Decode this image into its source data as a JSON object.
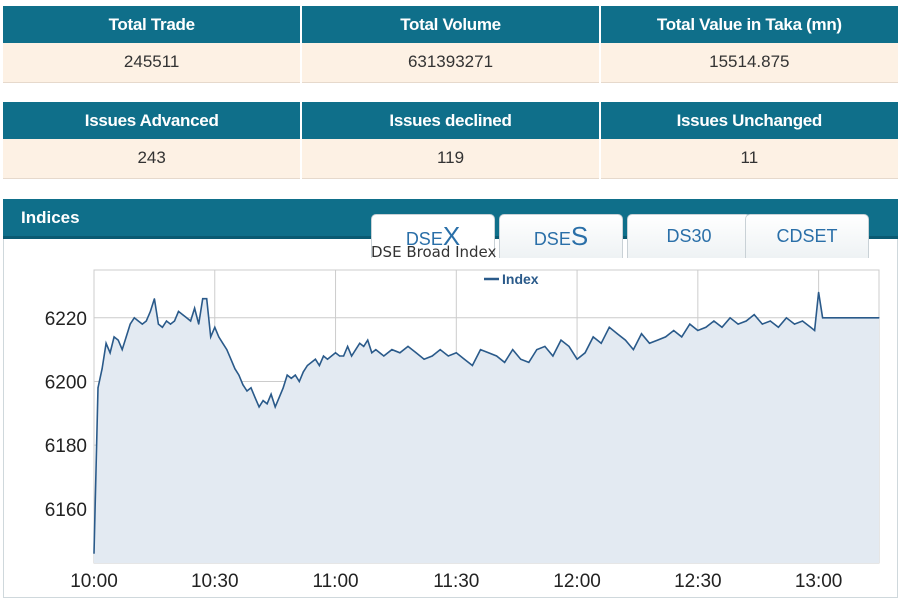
{
  "market_summary": {
    "headers": [
      "Total Trade",
      "Total Volume",
      "Total Value in Taka (mn)"
    ],
    "values": [
      "245511",
      "631393271",
      "15514.875"
    ]
  },
  "issues_summary": {
    "headers": [
      "Issues Advanced",
      "Issues declined",
      "Issues Unchanged"
    ],
    "values": [
      "243",
      "119",
      "11"
    ]
  },
  "indices": {
    "title": "Indices",
    "tabs": [
      {
        "prefix": "DSE",
        "suffix": "X",
        "active": true
      },
      {
        "prefix": "DSE",
        "suffix": "S",
        "active": false
      },
      {
        "prefix": "DS30",
        "suffix": "",
        "active": false
      },
      {
        "prefix": "CDSET",
        "suffix": "",
        "active": false
      }
    ]
  },
  "colors": {
    "header_bg": "#0f6f8a",
    "value_bg": "#fdf1e4",
    "line": "#2a5a8a",
    "fill": "#e3eaf2"
  },
  "chart_data": {
    "type": "area",
    "title": "DSE Broad Index",
    "legend": [
      {
        "name": "Index",
        "placement": "top-center"
      }
    ],
    "xlabel": "",
    "ylabel": "",
    "x_ticks": [
      "10:00",
      "10:30",
      "11:00",
      "11:30",
      "12:00",
      "12:30",
      "13:00"
    ],
    "y_ticks": [
      6160,
      6180,
      6200,
      6220
    ],
    "xlim": [
      "10:00",
      "13:15"
    ],
    "ylim": [
      6143,
      6235
    ],
    "grid": true,
    "series": [
      {
        "name": "Index",
        "x": [
          "10:00",
          "10:01",
          "10:02",
          "10:03",
          "10:04",
          "10:05",
          "10:06",
          "10:07",
          "10:08",
          "10:09",
          "10:10",
          "10:11",
          "10:12",
          "10:13",
          "10:14",
          "10:15",
          "10:16",
          "10:17",
          "10:18",
          "10:19",
          "10:20",
          "10:21",
          "10:22",
          "10:23",
          "10:24",
          "10:25",
          "10:26",
          "10:27",
          "10:28",
          "10:29",
          "10:30",
          "10:31",
          "10:32",
          "10:33",
          "10:34",
          "10:35",
          "10:36",
          "10:37",
          "10:38",
          "10:39",
          "10:40",
          "10:41",
          "10:42",
          "10:43",
          "10:44",
          "10:45",
          "10:46",
          "10:47",
          "10:48",
          "10:49",
          "10:50",
          "10:51",
          "10:52",
          "10:53",
          "10:54",
          "10:55",
          "10:56",
          "10:57",
          "10:58",
          "10:59",
          "11:00",
          "11:01",
          "11:02",
          "11:03",
          "11:04",
          "11:05",
          "11:06",
          "11:07",
          "11:08",
          "11:09",
          "11:10",
          "11:12",
          "11:14",
          "11:16",
          "11:18",
          "11:20",
          "11:22",
          "11:24",
          "11:26",
          "11:28",
          "11:30",
          "11:32",
          "11:34",
          "11:36",
          "11:38",
          "11:40",
          "11:42",
          "11:44",
          "11:46",
          "11:48",
          "11:50",
          "11:52",
          "11:54",
          "11:56",
          "11:58",
          "12:00",
          "12:02",
          "12:04",
          "12:06",
          "12:08",
          "12:10",
          "12:12",
          "12:14",
          "12:16",
          "12:18",
          "12:20",
          "12:22",
          "12:24",
          "12:26",
          "12:28",
          "12:30",
          "12:32",
          "12:34",
          "12:36",
          "12:38",
          "12:40",
          "12:42",
          "12:44",
          "12:46",
          "12:48",
          "12:50",
          "12:52",
          "12:54",
          "12:56",
          "12:58",
          "12:59",
          "13:00",
          "13:01",
          "13:05",
          "13:10",
          "13:15"
        ],
        "values": [
          6146,
          6198,
          6204,
          6212,
          6209,
          6214,
          6213,
          6210,
          6214,
          6218,
          6220,
          6219,
          6218,
          6219,
          6222,
          6226,
          6218,
          6217,
          6219,
          6218,
          6219,
          6222,
          6221,
          6220,
          6219,
          6223,
          6218,
          6226,
          6226,
          6214,
          6217,
          6214,
          6212,
          6210,
          6207,
          6204,
          6202,
          6199,
          6197,
          6198,
          6195,
          6192,
          6194,
          6193,
          6196,
          6192,
          6195,
          6198,
          6202,
          6201,
          6202,
          6200,
          6203,
          6205,
          6206,
          6207,
          6205,
          6208,
          6207,
          6208,
          6209,
          6208,
          6208,
          6211,
          6208,
          6210,
          6212,
          6211,
          6213,
          6209,
          6210,
          6208,
          6210,
          6209,
          6211,
          6209,
          6207,
          6208,
          6210,
          6208,
          6209,
          6207,
          6205,
          6210,
          6209,
          6208,
          6206,
          6210,
          6207,
          6206,
          6210,
          6211,
          6208,
          6213,
          6211,
          6207,
          6209,
          6214,
          6212,
          6217,
          6215,
          6213,
          6210,
          6215,
          6212,
          6213,
          6214,
          6216,
          6214,
          6218,
          6216,
          6217,
          6219,
          6217,
          6220,
          6218,
          6219,
          6221,
          6218,
          6219,
          6217,
          6220,
          6218,
          6219,
          6217,
          6216,
          6228,
          6220,
          6220,
          6220,
          6220
        ]
      }
    ]
  }
}
